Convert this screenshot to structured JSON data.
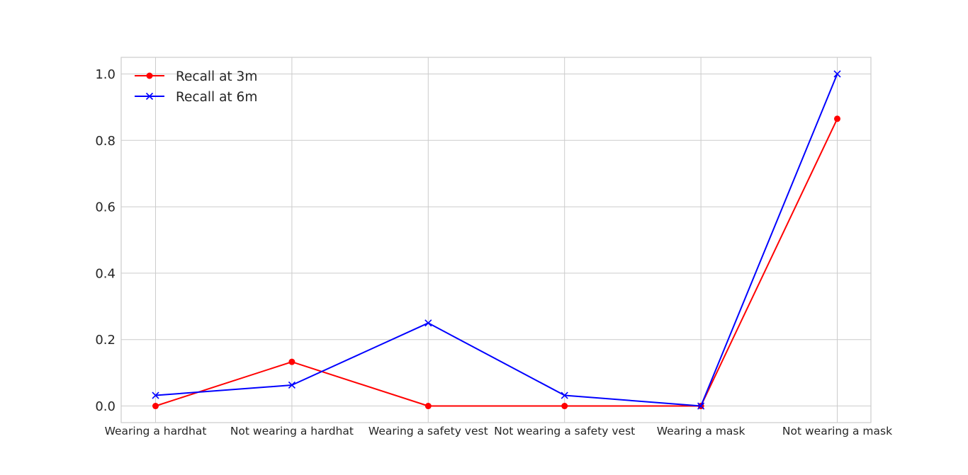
{
  "chart_data": {
    "type": "line",
    "title": "",
    "xlabel": "",
    "ylabel": "",
    "categories": [
      "Wearing a hardhat",
      "Not wearing a hardhat",
      "Wearing a safety vest",
      "Not wearing a safety vest",
      "Wearing a mask",
      "Not wearing a mask"
    ],
    "ylim": [
      -0.05,
      1.05
    ],
    "yticks": [
      "0.0",
      "0.2",
      "0.4",
      "0.6",
      "0.8",
      "1.0"
    ],
    "grid": true,
    "legend_position": "top-left",
    "series": [
      {
        "name": "Recall at 3m",
        "color": "#ff0000",
        "marker": "circle",
        "values": [
          0.0,
          0.133,
          0.0,
          0.0,
          0.0,
          0.865
        ]
      },
      {
        "name": "Recall at 6m",
        "color": "#0000ff",
        "marker": "x",
        "values": [
          0.032,
          0.063,
          0.25,
          0.032,
          0.0,
          1.0
        ]
      }
    ]
  }
}
